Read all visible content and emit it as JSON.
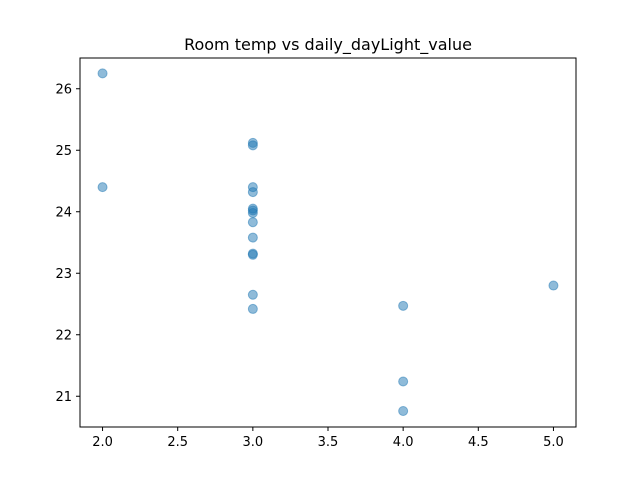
{
  "chart_data": {
    "type": "scatter",
    "title": "Room temp vs daily_dayLight_value",
    "xlabel": "",
    "ylabel": "",
    "xlim": [
      1.85,
      5.15
    ],
    "ylim": [
      20.5,
      26.5
    ],
    "xticks": [
      2.0,
      2.5,
      3.0,
      3.5,
      4.0,
      4.5,
      5.0
    ],
    "xtick_labels": [
      "2.0",
      "2.5",
      "3.0",
      "3.5",
      "4.0",
      "4.5",
      "5.0"
    ],
    "yticks": [
      21,
      22,
      23,
      24,
      25,
      26
    ],
    "ytick_labels": [
      "21",
      "22",
      "23",
      "24",
      "25",
      "26"
    ],
    "grid": false,
    "marker_color": "#1f77b4",
    "marker_alpha": 0.5,
    "series": [
      {
        "points": [
          {
            "x": 2,
            "y": 26.25
          },
          {
            "x": 2,
            "y": 24.4
          },
          {
            "x": 3,
            "y": 25.12
          },
          {
            "x": 3,
            "y": 25.08
          },
          {
            "x": 3,
            "y": 24.4
          },
          {
            "x": 3,
            "y": 24.32
          },
          {
            "x": 3,
            "y": 24.05
          },
          {
            "x": 3,
            "y": 24.02
          },
          {
            "x": 3,
            "y": 23.98
          },
          {
            "x": 3,
            "y": 23.83
          },
          {
            "x": 3,
            "y": 23.58
          },
          {
            "x": 3,
            "y": 23.32
          },
          {
            "x": 3,
            "y": 23.3
          },
          {
            "x": 3,
            "y": 22.65
          },
          {
            "x": 3,
            "y": 22.42
          },
          {
            "x": 4,
            "y": 22.47
          },
          {
            "x": 4,
            "y": 21.24
          },
          {
            "x": 4,
            "y": 20.76
          },
          {
            "x": 5,
            "y": 22.8
          }
        ]
      }
    ]
  }
}
